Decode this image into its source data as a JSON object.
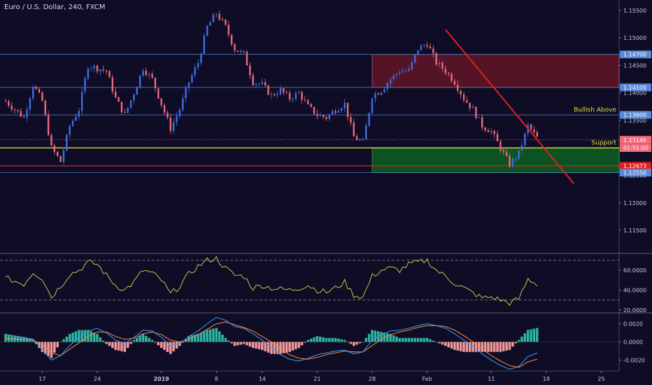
{
  "header": {
    "title": "Euro / U.S. Dollar, 240, FXCM"
  },
  "colors": {
    "background": "#0f0c26",
    "candle_up": "#3f6fe8",
    "candle_down": "#f06a78",
    "support_line": "#f2f242",
    "red_line": "#e02020",
    "resistance_zone": "#5c1526",
    "support_zone": "#0c5a22",
    "rsi_line": "#d8d84a",
    "macd_line": "#3aa0ff",
    "signal_line": "#ff8f3a",
    "hist_pos": "#2cb5a0",
    "hist_neg": "#f29a9a"
  },
  "chart_data": [
    {
      "type": "candlestick",
      "title": "Euro / U.S. Dollar, 240, FXCM",
      "ylim": [
        1.1108,
        1.1569
      ],
      "y_ticks": [
        "1.15500",
        "1.15000",
        "1.14500",
        "1.14000",
        "1.13500",
        "1.13000",
        "1.12500",
        "1.12000",
        "1.11500"
      ],
      "y_tick_values": [
        1.155,
        1.15,
        1.145,
        1.14,
        1.135,
        1.13,
        1.125,
        1.12,
        1.115
      ],
      "x_ticks": [
        "17",
        "24",
        "2019",
        "8",
        "14",
        "21",
        "28",
        "Feb",
        "11",
        "18",
        "25"
      ],
      "x_tick_index": [
        4,
        10,
        17,
        23,
        28,
        34,
        40,
        46,
        53,
        59,
        65
      ],
      "close_anchors": [
        [
          0,
          1.1385
        ],
        [
          2,
          1.1355
        ],
        [
          3,
          1.1415
        ],
        [
          4,
          1.1385
        ],
        [
          5,
          1.13
        ],
        [
          6,
          1.1275
        ],
        [
          7,
          1.134
        ],
        [
          8,
          1.137
        ],
        [
          9,
          1.145
        ],
        [
          10,
          1.1445
        ],
        [
          11,
          1.144
        ],
        [
          12,
          1.139
        ],
        [
          13,
          1.136
        ],
        [
          14,
          1.14
        ],
        [
          15,
          1.1445
        ],
        [
          16,
          1.1425
        ],
        [
          17,
          1.138
        ],
        [
          18,
          1.1335
        ],
        [
          19,
          1.137
        ],
        [
          20,
          1.142
        ],
        [
          21,
          1.1455
        ],
        [
          22,
          1.152
        ],
        [
          23,
          1.1545
        ],
        [
          24,
          1.152
        ],
        [
          25,
          1.148
        ],
        [
          26,
          1.147
        ],
        [
          27,
          1.142
        ],
        [
          28,
          1.1415
        ],
        [
          29,
          1.1395
        ],
        [
          30,
          1.1405
        ],
        [
          31,
          1.139
        ],
        [
          32,
          1.14
        ],
        [
          33,
          1.1375
        ],
        [
          34,
          1.136
        ],
        [
          35,
          1.1355
        ],
        [
          36,
          1.137
        ],
        [
          37,
          1.138
        ],
        [
          38,
          1.132
        ],
        [
          39,
          1.131
        ],
        [
          40,
          1.1395
        ],
        [
          41,
          1.1405
        ],
        [
          42,
          1.1425
        ],
        [
          43,
          1.144
        ],
        [
          44,
          1.144
        ],
        [
          45,
          1.148
        ],
        [
          46,
          1.149
        ],
        [
          47,
          1.1455
        ],
        [
          48,
          1.144
        ],
        [
          49,
          1.142
        ],
        [
          50,
          1.139
        ],
        [
          51,
          1.137
        ],
        [
          52,
          1.134
        ],
        [
          53,
          1.133
        ],
        [
          54,
          1.13
        ],
        [
          55,
          1.127
        ],
        [
          56,
          1.129
        ],
        [
          57,
          1.134
        ],
        [
          58,
          1.1318
        ]
      ],
      "levels": [
        {
          "value": 1.147,
          "label": "1.14700",
          "color": "#5a88d8"
        },
        {
          "value": 1.141,
          "label": "1.14100",
          "color": "#5a88d8"
        },
        {
          "value": 1.136,
          "label": "1.13600",
          "color": "#5a88d8"
        },
        {
          "value": 1.13146,
          "label": "1.13146",
          "color": "#f06a78"
        },
        {
          "value": 1.13,
          "label": "1.13000",
          "color": "#f2f242"
        },
        {
          "value": 1.12673,
          "label": "1.12673",
          "color": "#e02020"
        },
        {
          "value": 1.1255,
          "label": "1.12550",
          "color": "#5a88d8"
        }
      ],
      "countdown": "01:51:00",
      "zones": [
        {
          "name": "resistance",
          "from_index": 40,
          "to_index": 78,
          "y_top": 1.147,
          "y_bottom": 1.141
        },
        {
          "name": "support",
          "from_index": 40,
          "to_index": 78,
          "y_top": 1.13,
          "y_bottom": 1.1255
        }
      ],
      "annotations": [
        {
          "text": "Bullish Above",
          "y": 1.1366
        },
        {
          "text": "Support",
          "y": 1.1306
        }
      ],
      "trendline": {
        "from": [
          48,
          1.1515
        ],
        "to": [
          62,
          1.1235
        ]
      }
    },
    {
      "type": "line",
      "name": "RSI",
      "ylim": [
        17,
        77
      ],
      "y_ticks": [
        "60.0000",
        "40.0000",
        "20.0000"
      ],
      "y_tick_values": [
        60,
        40,
        20
      ],
      "dashed_levels": [
        70,
        30
      ],
      "anchors": [
        [
          0,
          52
        ],
        [
          2,
          46
        ],
        [
          3,
          58
        ],
        [
          4,
          52
        ],
        [
          5,
          33
        ],
        [
          6,
          44
        ],
        [
          7,
          56
        ],
        [
          8,
          60
        ],
        [
          9,
          68
        ],
        [
          10,
          66
        ],
        [
          11,
          55
        ],
        [
          12,
          45
        ],
        [
          13,
          40
        ],
        [
          14,
          48
        ],
        [
          15,
          60
        ],
        [
          16,
          57
        ],
        [
          17,
          50
        ],
        [
          18,
          36
        ],
        [
          19,
          44
        ],
        [
          20,
          56
        ],
        [
          21,
          64
        ],
        [
          22,
          70
        ],
        [
          23,
          72
        ],
        [
          24,
          62
        ],
        [
          25,
          55
        ],
        [
          26,
          54
        ],
        [
          27,
          42
        ],
        [
          28,
          45
        ],
        [
          29,
          42
        ],
        [
          30,
          41
        ],
        [
          31,
          40
        ],
        [
          32,
          42
        ],
        [
          33,
          45
        ],
        [
          34,
          40
        ],
        [
          35,
          38
        ],
        [
          36,
          42
        ],
        [
          37,
          48
        ],
        [
          38,
          35
        ],
        [
          39,
          33
        ],
        [
          40,
          54
        ],
        [
          41,
          60
        ],
        [
          42,
          62
        ],
        [
          43,
          60
        ],
        [
          44,
          66
        ],
        [
          45,
          68
        ],
        [
          46,
          70
        ],
        [
          47,
          60
        ],
        [
          48,
          54
        ],
        [
          49,
          47
        ],
        [
          50,
          42
        ],
        [
          51,
          37
        ],
        [
          52,
          32
        ],
        [
          53,
          33
        ],
        [
          54,
          30
        ],
        [
          55,
          27
        ],
        [
          56,
          31
        ],
        [
          57,
          51
        ],
        [
          58,
          46
        ]
      ]
    },
    {
      "type": "line",
      "name": "MACD",
      "ylim": [
        -0.0032,
        0.0032
      ],
      "y_ticks": [
        "0.0020",
        "0.0000",
        "-0.0020"
      ],
      "y_tick_values": [
        0.002,
        0.0,
        -0.002
      ],
      "macd_anchors": [
        [
          0,
          0.0008
        ],
        [
          2,
          0.0005
        ],
        [
          3,
          0.0003
        ],
        [
          4,
          -0.0008
        ],
        [
          5,
          -0.002
        ],
        [
          6,
          -0.0015
        ],
        [
          7,
          -0.0004
        ],
        [
          8,
          0.0005
        ],
        [
          9,
          0.0012
        ],
        [
          10,
          0.0015
        ],
        [
          11,
          0.001
        ],
        [
          12,
          0.0002
        ],
        [
          13,
          -0.0002
        ],
        [
          14,
          0.0005
        ],
        [
          15,
          0.0013
        ],
        [
          16,
          0.0012
        ],
        [
          17,
          0.0005
        ],
        [
          18,
          -0.0004
        ],
        [
          19,
          -0.0002
        ],
        [
          20,
          0.0006
        ],
        [
          21,
          0.0012
        ],
        [
          22,
          0.002
        ],
        [
          23,
          0.0027
        ],
        [
          24,
          0.0024
        ],
        [
          25,
          0.0017
        ],
        [
          26,
          0.0015
        ],
        [
          27,
          0.0009
        ],
        [
          28,
          0.0002
        ],
        [
          29,
          -0.0006
        ],
        [
          30,
          -0.0014
        ],
        [
          31,
          -0.0019
        ],
        [
          32,
          -0.0021
        ],
        [
          33,
          -0.0018
        ],
        [
          34,
          -0.0014
        ],
        [
          35,
          -0.0012
        ],
        [
          36,
          -0.001
        ],
        [
          37,
          -0.0009
        ],
        [
          38,
          -0.0013
        ],
        [
          39,
          -0.0011
        ],
        [
          40,
          0.0002
        ],
        [
          41,
          0.0008
        ],
        [
          42,
          0.0012
        ],
        [
          43,
          0.0013
        ],
        [
          44,
          0.0015
        ],
        [
          45,
          0.0018
        ],
        [
          46,
          0.002
        ],
        [
          47,
          0.0018
        ],
        [
          48,
          0.0015
        ],
        [
          49,
          0.0009
        ],
        [
          50,
          0.0002
        ],
        [
          51,
          -0.0005
        ],
        [
          52,
          -0.0013
        ],
        [
          53,
          -0.002
        ],
        [
          54,
          -0.0026
        ],
        [
          55,
          -0.003
        ],
        [
          56,
          -0.0027
        ],
        [
          57,
          -0.0016
        ],
        [
          58,
          -0.0012
        ]
      ],
      "signal_anchors": [
        [
          0,
          0.0004
        ],
        [
          3,
          0.0002
        ],
        [
          4,
          -0.0003
        ],
        [
          5,
          -0.0012
        ],
        [
          6,
          -0.0015
        ],
        [
          7,
          -0.0008
        ],
        [
          8,
          -0.0001
        ],
        [
          9,
          0.0006
        ],
        [
          10,
          0.0011
        ],
        [
          11,
          0.0011
        ],
        [
          12,
          0.0006
        ],
        [
          13,
          0.0003
        ],
        [
          14,
          0.0004
        ],
        [
          15,
          0.0009
        ],
        [
          16,
          0.0011
        ],
        [
          17,
          0.0008
        ],
        [
          18,
          0.0002
        ],
        [
          19,
          0.0
        ],
        [
          20,
          0.0003
        ],
        [
          21,
          0.0008
        ],
        [
          22,
          0.0014
        ],
        [
          23,
          0.002
        ],
        [
          24,
          0.0022
        ],
        [
          25,
          0.0019
        ],
        [
          26,
          0.0016
        ],
        [
          27,
          0.0012
        ],
        [
          28,
          0.0006
        ],
        [
          29,
          0.0
        ],
        [
          30,
          -0.0008
        ],
        [
          31,
          -0.0014
        ],
        [
          32,
          -0.0018
        ],
        [
          33,
          -0.0019
        ],
        [
          34,
          -0.0017
        ],
        [
          35,
          -0.0014
        ],
        [
          36,
          -0.0012
        ],
        [
          37,
          -0.001
        ],
        [
          38,
          -0.0011
        ],
        [
          39,
          -0.0011
        ],
        [
          40,
          -0.0004
        ],
        [
          41,
          0.0003
        ],
        [
          42,
          0.0008
        ],
        [
          43,
          0.0011
        ],
        [
          44,
          0.0013
        ],
        [
          45,
          0.0016
        ],
        [
          46,
          0.0018
        ],
        [
          47,
          0.0018
        ],
        [
          48,
          0.0017
        ],
        [
          49,
          0.0013
        ],
        [
          50,
          0.0007
        ],
        [
          51,
          0.0
        ],
        [
          52,
          -0.0008
        ],
        [
          53,
          -0.0015
        ],
        [
          54,
          -0.0021
        ],
        [
          55,
          -0.0026
        ],
        [
          56,
          -0.0028
        ],
        [
          57,
          -0.0022
        ],
        [
          58,
          -0.0019
        ]
      ]
    }
  ]
}
